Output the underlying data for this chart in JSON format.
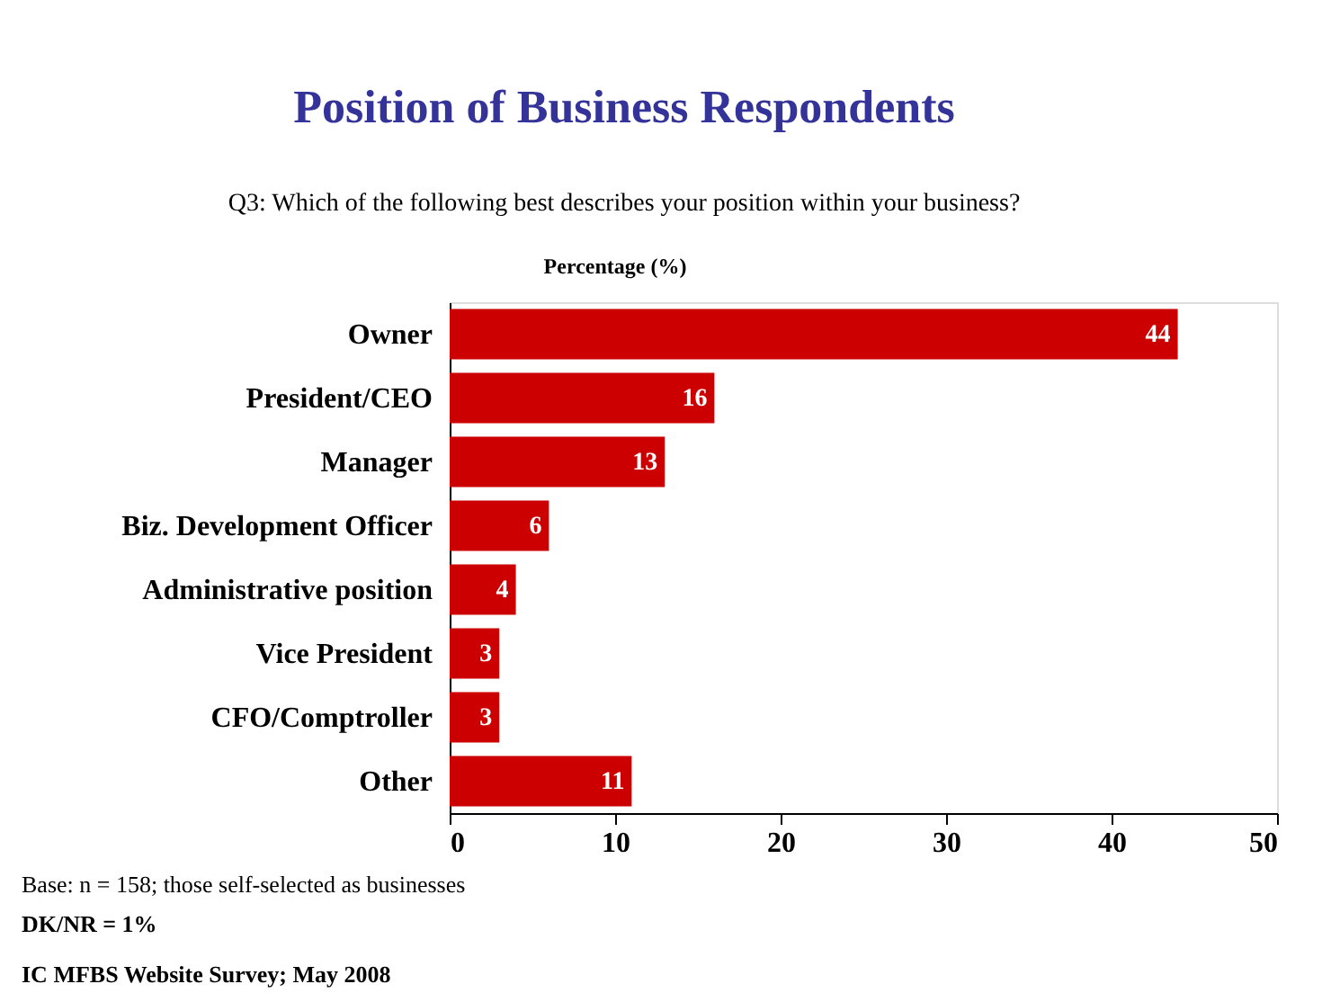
{
  "chart_data": {
    "type": "bar",
    "orientation": "horizontal",
    "title": "Position of Business Respondents",
    "subtitle": "Q3: Which of the following best describes your position within your business?",
    "xlabel": "Percentage (%)",
    "categories": [
      "Owner",
      "President/CEO",
      "Manager",
      "Biz. Development Officer",
      "Administrative position",
      "Vice President",
      "CFO/Comptroller",
      "Other"
    ],
    "values": [
      44,
      16,
      13,
      6,
      4,
      3,
      3,
      11
    ],
    "color": "#cc0000",
    "data_labels": true,
    "xlim": [
      0,
      50
    ],
    "xticks": [
      0,
      10,
      20,
      30,
      40,
      50
    ],
    "grid": false,
    "annotations": [
      "Base: n = 158; those self-selected as businesses",
      "DK/NR = 1%",
      "IC MFBS Website Survey; May 2008"
    ]
  }
}
